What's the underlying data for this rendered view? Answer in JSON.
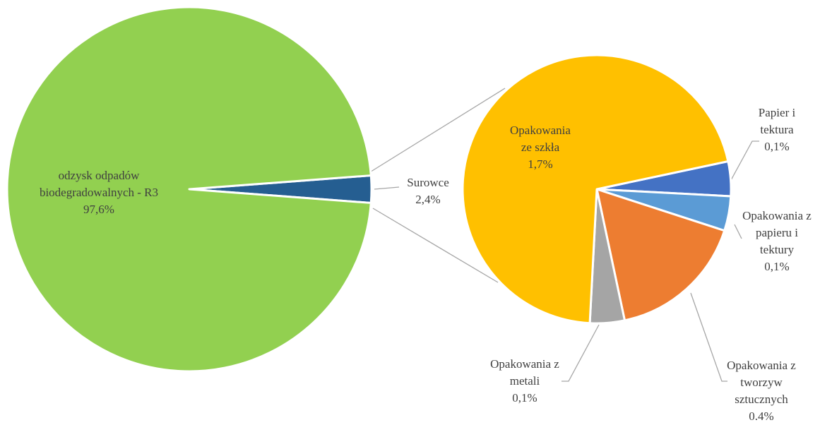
{
  "chart_data": [
    {
      "type": "pie",
      "categories": [
        "Surowce",
        "odzysk odpadów biodegradowalnych - R3"
      ],
      "values": [
        2.4,
        97.6
      ],
      "value_labels": [
        "2,4%",
        "97,6%"
      ],
      "colors": [
        "#255e91",
        "#92d050"
      ]
    },
    {
      "type": "pie",
      "categories": [
        "Papier i tektura",
        "Opakowania z papieru i tektury",
        "Opakowania z tworzyw sztucznych",
        "Opakowania z metali",
        "Opakowania ze szkła"
      ],
      "values": [
        0.1,
        0.1,
        0.4,
        0.1,
        1.7
      ],
      "value_labels": [
        "0,1%",
        "0,1%",
        "0.4%",
        "0,1%",
        "1,7%"
      ],
      "colors": [
        "#4472c4",
        "#5b9bd5",
        "#ed7d31",
        "#a5a5a5",
        "#ffc000"
      ]
    }
  ]
}
